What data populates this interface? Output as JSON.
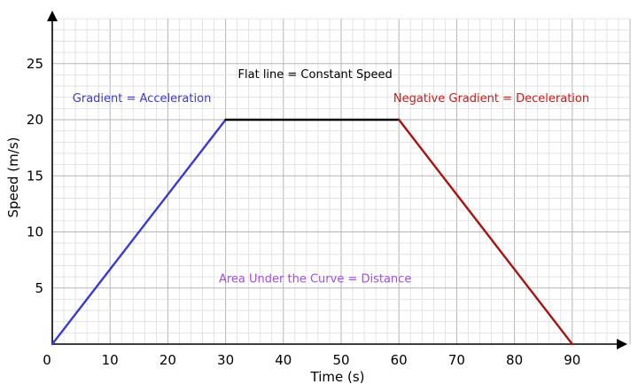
{
  "chart_data": {
    "type": "line",
    "xlabel": "Time (s)",
    "ylabel": "Speed (m/s)",
    "xlim": [
      0,
      100
    ],
    "ylim": [
      0,
      29
    ],
    "x_ticks": [
      0,
      10,
      20,
      30,
      40,
      50,
      60,
      70,
      80,
      90
    ],
    "y_ticks": [
      5,
      10,
      15,
      20,
      25
    ],
    "origin_label": "0",
    "grid": {
      "major": true,
      "minor": true,
      "major_step_x": 10,
      "minor_step_x": 2,
      "major_step_y": 5,
      "minor_step_y": 1
    },
    "segments": [
      {
        "x": [
          0,
          30
        ],
        "y": [
          0,
          20
        ],
        "color": "#3b3bcc"
      },
      {
        "x": [
          30,
          60
        ],
        "y": [
          20,
          20
        ],
        "color": "#000000"
      },
      {
        "x": [
          60,
          90
        ],
        "y": [
          20,
          0
        ],
        "color": "#aa1111"
      }
    ],
    "annotations": [
      {
        "text": "Gradient = Acceleration",
        "x": 15.5,
        "y": 21.6,
        "color": "#3b3bcc"
      },
      {
        "text": "Flat line = Constant Speed",
        "x": 45.5,
        "y": 23.7,
        "color": "#000000"
      },
      {
        "text": "Negative Gradient = Deceleration",
        "x": 76,
        "y": 21.6,
        "color": "#cc1a1a"
      },
      {
        "text": "Area Under the Curve = Distance",
        "x": 45.5,
        "y": 5.5,
        "color": "#a050e0"
      }
    ]
  }
}
